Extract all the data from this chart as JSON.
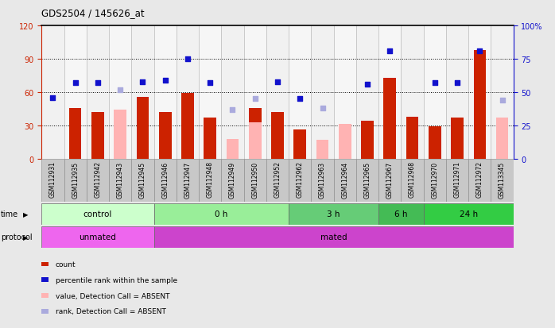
{
  "title": "GDS2504 / 145626_at",
  "samples": [
    "GSM112931",
    "GSM112935",
    "GSM112942",
    "GSM112943",
    "GSM112945",
    "GSM112946",
    "GSM112947",
    "GSM112948",
    "GSM112949",
    "GSM112950",
    "GSM112952",
    "GSM112962",
    "GSM112963",
    "GSM112964",
    "GSM112965",
    "GSM112967",
    "GSM112968",
    "GSM112970",
    "GSM112971",
    "GSM112972",
    "GSM113345"
  ],
  "red_bars": [
    0,
    46,
    42,
    0,
    56,
    42,
    59,
    37,
    0,
    46,
    42,
    26,
    0,
    0,
    34,
    73,
    38,
    29,
    37,
    98,
    0
  ],
  "pink_bars": [
    0,
    0,
    0,
    44,
    0,
    0,
    0,
    0,
    18,
    33,
    0,
    0,
    17,
    31,
    0,
    0,
    0,
    0,
    0,
    0,
    37
  ],
  "blue_dots": [
    46,
    57,
    57,
    0,
    58,
    59,
    75,
    57,
    0,
    0,
    58,
    45,
    0,
    0,
    56,
    81,
    0,
    57,
    57,
    81,
    0
  ],
  "lavender_dots": [
    0,
    0,
    0,
    52,
    0,
    0,
    0,
    0,
    37,
    45,
    0,
    0,
    38,
    0,
    0,
    0,
    0,
    0,
    0,
    0,
    44
  ],
  "time_groups": [
    {
      "label": "control",
      "start": 0,
      "end": 5,
      "color": "#ccffcc"
    },
    {
      "label": "0 h",
      "start": 5,
      "end": 11,
      "color": "#99ee99"
    },
    {
      "label": "3 h",
      "start": 11,
      "end": 15,
      "color": "#66cc77"
    },
    {
      "label": "6 h",
      "start": 15,
      "end": 17,
      "color": "#44bb55"
    },
    {
      "label": "24 h",
      "start": 17,
      "end": 21,
      "color": "#33cc44"
    }
  ],
  "protocol_groups": [
    {
      "label": "unmated",
      "start": 0,
      "end": 5,
      "color": "#ee66ee"
    },
    {
      "label": "mated",
      "start": 5,
      "end": 21,
      "color": "#cc44cc"
    }
  ],
  "ylim_left": [
    0,
    120
  ],
  "ylim_right": [
    0,
    100
  ],
  "yticks_left": [
    0,
    30,
    60,
    90,
    120
  ],
  "yticks_right": [
    0,
    25,
    50,
    75,
    100
  ],
  "red_color": "#cc2200",
  "pink_color": "#ffb3b3",
  "blue_color": "#1111cc",
  "lavender_color": "#aaaadd",
  "bg_color": "#e8e8e8",
  "plot_bg": "#ffffff",
  "col_bg_odd": "#d8d8d8",
  "col_bg_even": "#e8e8e8"
}
